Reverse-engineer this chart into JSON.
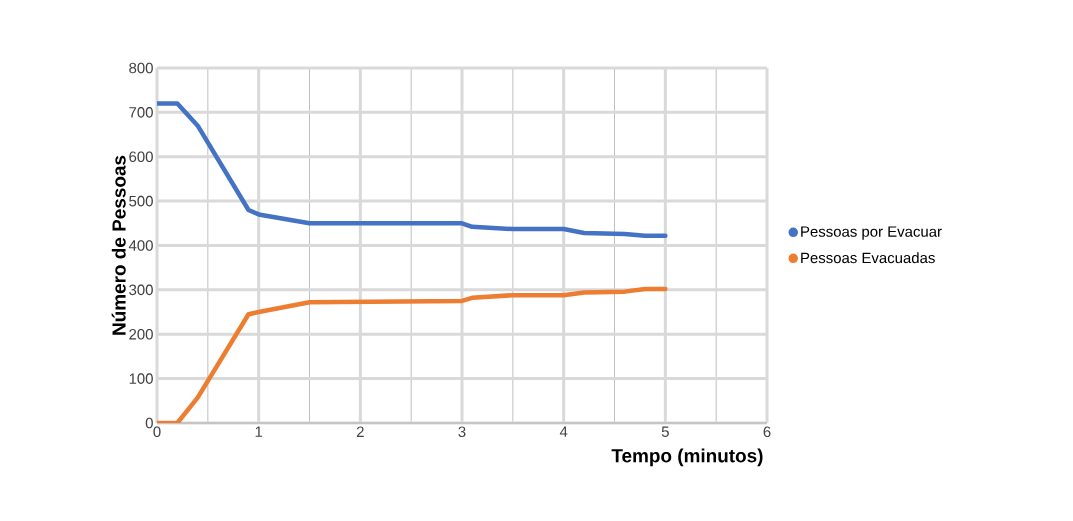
{
  "chart_data": {
    "type": "line",
    "xlabel": "Tempo (minutos)",
    "ylabel": "Número de Pessoas",
    "xlim": [
      0,
      6
    ],
    "ylim": [
      0,
      800
    ],
    "xticks": [
      0,
      1,
      2,
      3,
      4,
      5,
      6
    ],
    "yticks": [
      0,
      100,
      200,
      300,
      400,
      500,
      600,
      700,
      800
    ],
    "grid": true,
    "legend": "right",
    "marker": "none",
    "line_style": "solid",
    "series": [
      {
        "name": "Pessoas por Evacuar",
        "color": "#4472c4",
        "x": [
          0,
          0.2,
          0.4,
          0.9,
          1.0,
          1.5,
          3.0,
          3.1,
          3.5,
          4.0,
          4.2,
          4.6,
          4.8,
          5.0
        ],
        "values": [
          720,
          720,
          670,
          480,
          470,
          450,
          450,
          442,
          437,
          437,
          428,
          426,
          422,
          422
        ]
      },
      {
        "name": "Pessoas Evacuadas",
        "color": "#ed7d31",
        "x": [
          0,
          0.2,
          0.4,
          0.9,
          1.0,
          1.5,
          3.0,
          3.1,
          3.5,
          4.0,
          4.2,
          4.6,
          4.8,
          5.0
        ],
        "values": [
          0,
          0,
          57,
          245,
          250,
          272,
          275,
          282,
          288,
          288,
          294,
          296,
          302,
          302
        ]
      }
    ]
  }
}
